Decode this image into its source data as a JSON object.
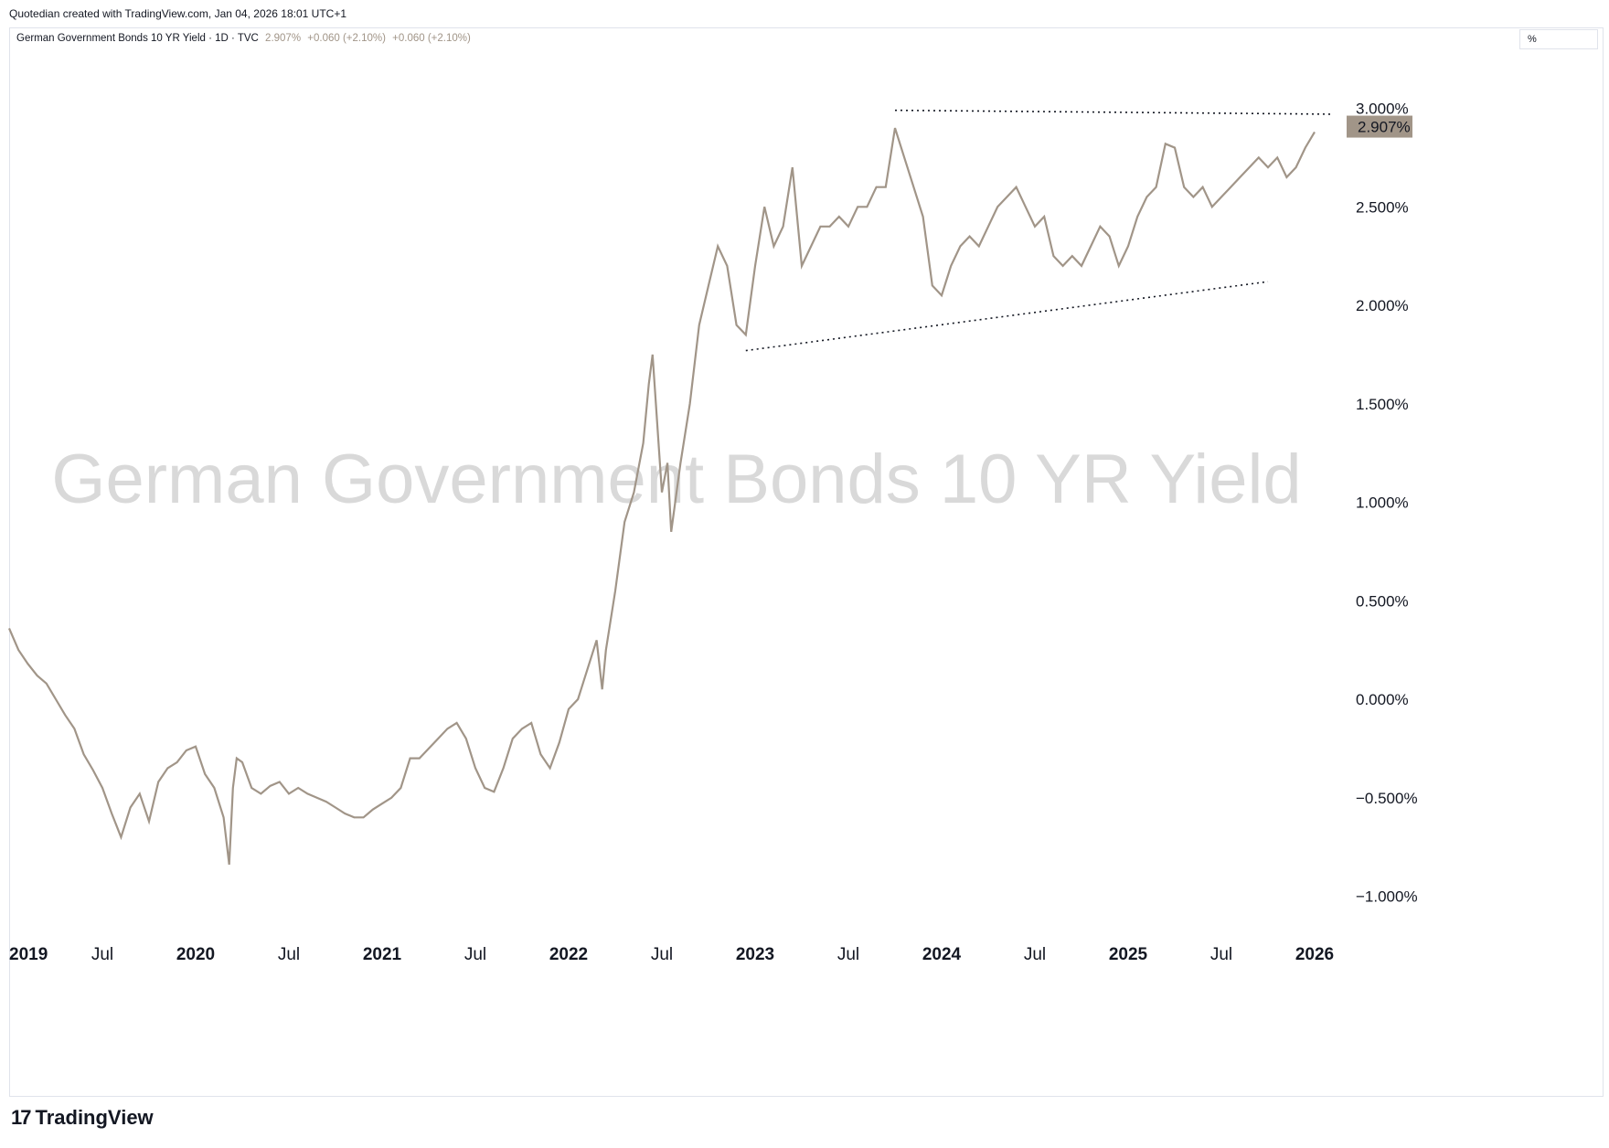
{
  "header": {
    "attribution": "Quotedian created with TradingView.com, Jan 04, 2026 18:01 UTC+1"
  },
  "legend": {
    "symbol": "German Government Bonds 10 YR Yield · 1D · TVC",
    "last": "2.907%",
    "change1": "+0.060 (+2.10%)",
    "change2": "+0.060 (+2.10%)"
  },
  "scale_unit": "%",
  "brand": {
    "logo": "17",
    "name": "TradingView"
  },
  "colors": {
    "line": "#a19588",
    "price_badge": "#a19588",
    "watermark": "#d9d9d9"
  },
  "chart_data": {
    "type": "line",
    "watermark": "German Government Bonds 10 YR Yield",
    "last_price": 2.907,
    "last_label": "2.907%",
    "ylim": [
      -1.2,
      3.2
    ],
    "xlim": [
      2019.0,
      2026.1
    ],
    "y_ticks": [
      {
        "v": 3.0,
        "label": "3.000%"
      },
      {
        "v": 2.5,
        "label": "2.500%"
      },
      {
        "v": 2.0,
        "label": "2.000%"
      },
      {
        "v": 1.5,
        "label": "1.500%"
      },
      {
        "v": 1.0,
        "label": "1.000%"
      },
      {
        "v": 0.5,
        "label": "0.500%"
      },
      {
        "v": 0.0,
        "label": "0.000%"
      },
      {
        "v": -0.5,
        "label": "−0.500%"
      },
      {
        "v": -1.0,
        "label": "−1.000%"
      }
    ],
    "x_ticks": [
      {
        "t": 2019.0,
        "label": "2019",
        "year": true
      },
      {
        "t": 2019.5,
        "label": "Jul",
        "year": false
      },
      {
        "t": 2020.0,
        "label": "2020",
        "year": true
      },
      {
        "t": 2020.5,
        "label": "Jul",
        "year": false
      },
      {
        "t": 2021.0,
        "label": "2021",
        "year": true
      },
      {
        "t": 2021.5,
        "label": "Jul",
        "year": false
      },
      {
        "t": 2022.0,
        "label": "2022",
        "year": true
      },
      {
        "t": 2022.5,
        "label": "Jul",
        "year": false
      },
      {
        "t": 2023.0,
        "label": "2023",
        "year": true
      },
      {
        "t": 2023.5,
        "label": "Jul",
        "year": false
      },
      {
        "t": 2024.0,
        "label": "2024",
        "year": true
      },
      {
        "t": 2024.5,
        "label": "Jul",
        "year": false
      },
      {
        "t": 2025.0,
        "label": "2025",
        "year": true
      },
      {
        "t": 2025.5,
        "label": "Jul",
        "year": false
      },
      {
        "t": 2026.0,
        "label": "2026",
        "year": true
      }
    ],
    "series": [
      {
        "x": [
          2019.0,
          2019.05,
          2019.1,
          2019.15,
          2019.2,
          2019.25,
          2019.3,
          2019.35,
          2019.4,
          2019.45,
          2019.5,
          2019.55,
          2019.6,
          2019.65,
          2019.7,
          2019.75,
          2019.8,
          2019.85,
          2019.9,
          2019.95,
          2020.0,
          2020.05,
          2020.1,
          2020.15,
          2020.18,
          2020.2,
          2020.22,
          2020.25,
          2020.3,
          2020.35,
          2020.4,
          2020.45,
          2020.5,
          2020.55,
          2020.6,
          2020.65,
          2020.7,
          2020.75,
          2020.8,
          2020.85,
          2020.9,
          2020.95,
          2021.0,
          2021.05,
          2021.1,
          2021.15,
          2021.2,
          2021.25,
          2021.3,
          2021.35,
          2021.4,
          2021.45,
          2021.5,
          2021.55,
          2021.6,
          2021.65,
          2021.7,
          2021.75,
          2021.8,
          2021.85,
          2021.9,
          2021.95,
          2022.0,
          2022.05,
          2022.1,
          2022.15,
          2022.18,
          2022.2,
          2022.25,
          2022.3,
          2022.35,
          2022.4,
          2022.43,
          2022.45,
          2022.5,
          2022.53,
          2022.55,
          2022.6,
          2022.65,
          2022.7,
          2022.75,
          2022.8,
          2022.85,
          2022.9,
          2022.95,
          2023.0,
          2023.05,
          2023.1,
          2023.15,
          2023.2,
          2023.25,
          2023.3,
          2023.35,
          2023.4,
          2023.45,
          2023.5,
          2023.55,
          2023.6,
          2023.65,
          2023.7,
          2023.75,
          2023.8,
          2023.85,
          2023.9,
          2023.95,
          2024.0,
          2024.05,
          2024.1,
          2024.15,
          2024.2,
          2024.25,
          2024.3,
          2024.35,
          2024.4,
          2024.45,
          2024.5,
          2024.55,
          2024.6,
          2024.65,
          2024.7,
          2024.75,
          2024.8,
          2024.85,
          2024.9,
          2024.95,
          2025.0,
          2025.05,
          2025.1,
          2025.15,
          2025.2,
          2025.25,
          2025.3,
          2025.35,
          2025.4,
          2025.45,
          2025.5,
          2025.55,
          2025.6,
          2025.65,
          2025.7,
          2025.75,
          2025.8,
          2025.85,
          2025.9,
          2025.95,
          2026.0
        ],
        "y": [
          0.36,
          0.25,
          0.18,
          0.12,
          0.08,
          0.0,
          -0.08,
          -0.15,
          -0.28,
          -0.36,
          -0.45,
          -0.58,
          -0.7,
          -0.55,
          -0.48,
          -0.62,
          -0.42,
          -0.35,
          -0.32,
          -0.26,
          -0.24,
          -0.38,
          -0.45,
          -0.6,
          -0.84,
          -0.45,
          -0.3,
          -0.32,
          -0.45,
          -0.48,
          -0.44,
          -0.42,
          -0.48,
          -0.45,
          -0.48,
          -0.5,
          -0.52,
          -0.55,
          -0.58,
          -0.6,
          -0.6,
          -0.56,
          -0.53,
          -0.5,
          -0.45,
          -0.3,
          -0.3,
          -0.25,
          -0.2,
          -0.15,
          -0.12,
          -0.2,
          -0.35,
          -0.45,
          -0.47,
          -0.35,
          -0.2,
          -0.15,
          -0.12,
          -0.28,
          -0.35,
          -0.22,
          -0.05,
          0.0,
          0.15,
          0.3,
          0.05,
          0.25,
          0.55,
          0.9,
          1.05,
          1.3,
          1.6,
          1.75,
          1.05,
          1.2,
          0.85,
          1.2,
          1.5,
          1.9,
          2.1,
          2.3,
          2.2,
          1.9,
          1.85,
          2.2,
          2.5,
          2.3,
          2.4,
          2.7,
          2.2,
          2.3,
          2.4,
          2.4,
          2.45,
          2.4,
          2.5,
          2.5,
          2.6,
          2.6,
          2.9,
          2.75,
          2.6,
          2.45,
          2.1,
          2.05,
          2.2,
          2.3,
          2.35,
          2.3,
          2.4,
          2.5,
          2.55,
          2.6,
          2.5,
          2.4,
          2.45,
          2.25,
          2.2,
          2.25,
          2.2,
          2.3,
          2.4,
          2.35,
          2.2,
          2.3,
          2.45,
          2.55,
          2.6,
          2.82,
          2.8,
          2.6,
          2.55,
          2.6,
          2.5,
          2.55,
          2.6,
          2.65,
          2.7,
          2.75,
          2.7,
          2.75,
          2.65,
          2.7,
          2.8,
          2.88
        ]
      }
    ],
    "trendlines": [
      {
        "x1": 2023.75,
        "y1": 2.99,
        "x2": 2026.1,
        "y2": 2.97
      },
      {
        "x1": 2022.95,
        "y1": 1.77,
        "x2": 2025.75,
        "y2": 2.12
      }
    ]
  }
}
